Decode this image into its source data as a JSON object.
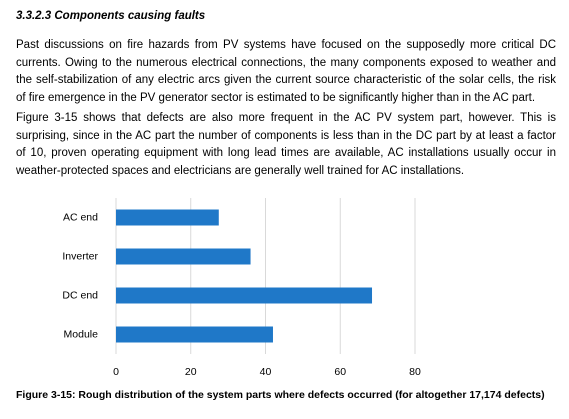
{
  "heading": "3.3.2.3 Components causing faults",
  "paragraphs": [
    "Past discussions on fire hazards from PV systems have focused on the supposedly more critical DC currents. Owing to the numerous electrical connections, the many components exposed to weather and the self-stabilization of any electric arcs given the current source characteristic of the solar cells, the risk of fire emergence in the PV generator sector is estimated to be significantly higher than in the AC part.",
    "Figure 3-15 shows that defects are also more frequent in the AC PV system part, however. This is surprising, since in the AC part the number of components is less than in the DC part by at least a factor of 10, proven operating equipment with long lead times are available, AC installations usually occur in weather-protected spaces and electricians are generally well trained for AC installations."
  ],
  "chart_data": {
    "type": "bar",
    "orientation": "horizontal",
    "categories": [
      "AC end",
      "Inverter",
      "DC end",
      "Module"
    ],
    "values": [
      27.5,
      36,
      68.5,
      42
    ],
    "color": "#1f78c8",
    "xlim": [
      0,
      80
    ],
    "xticks": [
      0,
      20,
      40,
      60,
      80
    ],
    "grid": true
  },
  "caption": "Figure 3-15: Rough distribution of the system parts where defects occurred (for altogether 17,174 defects)"
}
